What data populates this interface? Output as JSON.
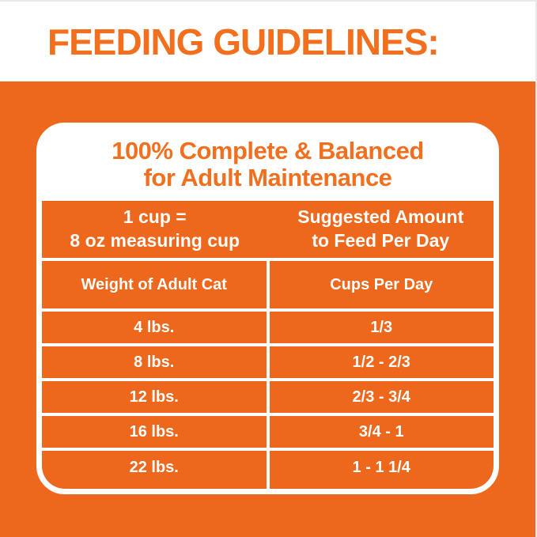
{
  "title": "FEEDING GUIDELINES:",
  "colors": {
    "orange_background": "#ed671c",
    "orange_text": "#f26f1d",
    "white": "#ffffff"
  },
  "card": {
    "header_line1": "100% Complete & Balanced",
    "header_line2": "for Adult Maintenance"
  },
  "table": {
    "cup_note": {
      "line1": "1 cup =",
      "line2": "8 oz measuring cup"
    },
    "suggested": {
      "line1": "Suggested Amount",
      "line2": "to Feed Per Day"
    },
    "columns": [
      "Weight of Adult Cat",
      "Cups Per Day"
    ],
    "rows": [
      {
        "weight": "4 lbs.",
        "cups": "1/3"
      },
      {
        "weight": "8 lbs.",
        "cups": "1/2 - 2/3"
      },
      {
        "weight": "12 lbs.",
        "cups": "2/3 - 3/4"
      },
      {
        "weight": "16 lbs.",
        "cups": "3/4 - 1"
      },
      {
        "weight": "22 lbs.",
        "cups": "1 - 1 1/4"
      }
    ]
  }
}
